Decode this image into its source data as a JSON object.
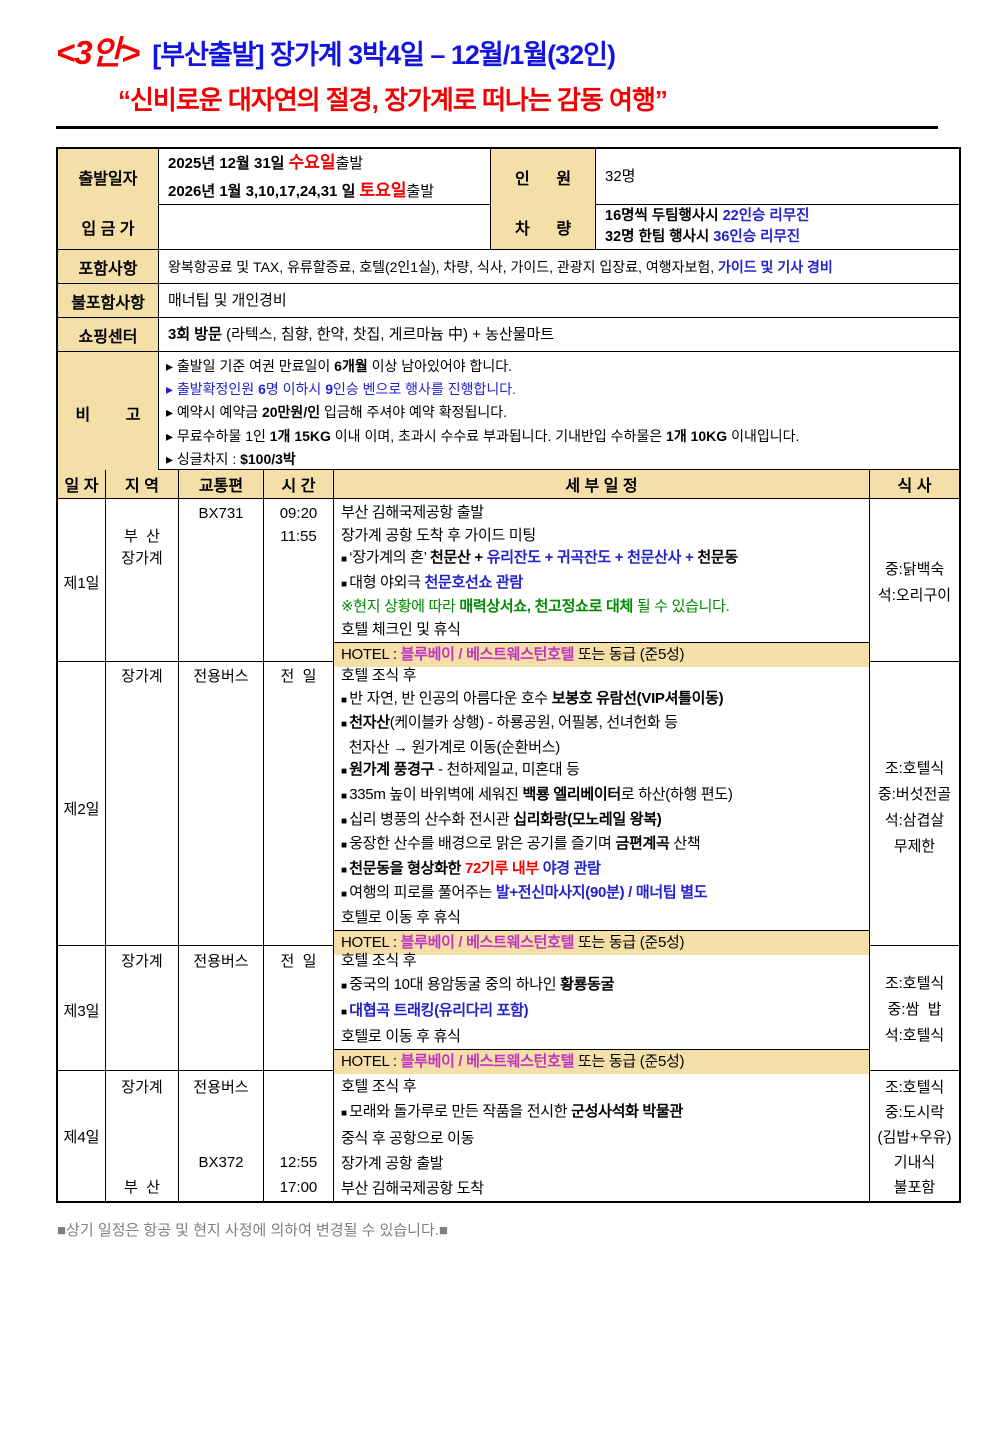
{
  "colors": {
    "table_header_bg": "#F4DFA9",
    "highlight_blue": "#2222CC",
    "highlight_red": "#F50000",
    "highlight_green": "#008A00",
    "hotel_magenta": "#C233C2",
    "title_blue": "#1414E0",
    "title_red": "#F50000",
    "footer_gray": "#808080"
  },
  "title": {
    "line1": [
      {
        "t": "<3안>",
        "c": "tred xl"
      },
      {
        "t": "  [부산출발] 장가계 3박4일 – 12월/1월(32인)",
        "c": "tblue"
      }
    ],
    "line2": [
      {
        "t": "“신비로운 대자연의 절경, 장가계로 떠나는 감동 여행”",
        "c": "tred"
      }
    ]
  },
  "info": {
    "departure": {
      "label": "출발일자",
      "lines": [
        [
          {
            "t": "2025년 12월 31일 ",
            "c": "b"
          },
          {
            "t": "수요일",
            "c": "red xb"
          },
          {
            "t": "출발",
            "c": ""
          }
        ],
        [
          {
            "t": "2026년 1월 3,10,17,24,31 일 ",
            "c": "b"
          },
          {
            "t": "토요일",
            "c": "red xb"
          },
          {
            "t": "출발",
            "c": ""
          }
        ]
      ]
    },
    "people": {
      "label": "인      원",
      "value": "32명"
    },
    "deposit": {
      "label": "입 금 가",
      "value": ""
    },
    "vehicle": {
      "label": "차      량",
      "lines": [
        [
          {
            "t": "16명씩 두팀행사시 ",
            "c": "b"
          },
          {
            "t": "22인승 리무진",
            "c": "blue b"
          }
        ],
        [
          {
            "t": "32명 한팀 행사시 ",
            "c": "b"
          },
          {
            "t": "36인승 리무진",
            "c": "blue b"
          }
        ]
      ]
    },
    "included": {
      "label": "포함사항",
      "segments": [
        {
          "t": "왕복항공료 및 TAX, 유류할증료, 호텔(2인1실), 차량, 식사, 가이드, 관광지 입장료, 여행자보험, ",
          "c": ""
        },
        {
          "t": "가이드 및 기사 경비",
          "c": "blue b"
        }
      ]
    },
    "excluded": {
      "label": "불포함사항",
      "segments": [
        {
          "t": "매너팁 및 개인경비",
          "c": ""
        }
      ]
    },
    "shopping": {
      "label": "쇼핑센터",
      "segments": [
        {
          "t": "3회 방문",
          "c": "b"
        },
        {
          "t": " (라텍스, 침향, 한약, 찻집, 게르마늄 中) + 농산물마트",
          "c": ""
        }
      ]
    },
    "notes": {
      "label": "비        고",
      "lines": [
        [
          {
            "t": "▸ 출발일 기준 여권 만료일이 ",
            "c": ""
          },
          {
            "t": "6개월",
            "c": "b"
          },
          {
            "t": " 이상 남아있어야 합니다.",
            "c": ""
          }
        ],
        [
          {
            "t": "▸ 출발확정인원 ",
            "c": "blue"
          },
          {
            "t": "6",
            "c": "blue b"
          },
          {
            "t": "명 이하시 ",
            "c": "blue"
          },
          {
            "t": "9",
            "c": "blue b"
          },
          {
            "t": "인승 벤으로 행사를 진행합니다.",
            "c": "blue"
          }
        ],
        [
          {
            "t": "▸ 예약시 예약금 ",
            "c": ""
          },
          {
            "t": "20만원/인",
            "c": "b"
          },
          {
            "t": " 입금해 주셔야 예약 확정됩니다.",
            "c": ""
          }
        ],
        [
          {
            "t": "▸ 무료수하물 1인 ",
            "c": ""
          },
          {
            "t": "1개 15KG",
            "c": "b"
          },
          {
            "t": " 이내 이며, 초과시 수수료 부과됩니다. 기내반입 수하물은 ",
            "c": ""
          },
          {
            "t": "1개 10KG",
            "c": "b"
          },
          {
            "t": " 이내입니다.",
            "c": ""
          }
        ],
        [
          {
            "t": "▸ 싱글차지 : ",
            "c": ""
          },
          {
            "t": "$100/3박",
            "c": "b"
          }
        ]
      ]
    }
  },
  "itinerary": {
    "headers": [
      "일 자",
      "지 역",
      "교통편",
      "시 간",
      "세 부 일 정",
      "식 사"
    ],
    "days": [
      {
        "day": "제1일",
        "regions": [
          "",
          "부  산",
          "장가계"
        ],
        "transports": [
          "BX731"
        ],
        "times": [
          "09:20",
          "11:55"
        ],
        "details": [
          {
            "s": [
              {
                "t": "부산 김해국제공항 출발",
                "c": ""
              }
            ]
          },
          {
            "s": [
              {
                "t": "장가계 공항 도착 후 가이드 미팅",
                "c": ""
              }
            ]
          },
          {
            "s": [
              {
                "t": "■ ",
                "c": "sq"
              },
              {
                "t": "‘장가계의 혼’ ",
                "c": ""
              },
              {
                "t": "천문산",
                "c": "b"
              },
              {
                "t": " + ",
                "c": "b"
              },
              {
                "t": "유리잔도",
                "c": "blue b"
              },
              {
                "t": " + ",
                "c": "blue b"
              },
              {
                "t": "귀곡잔도",
                "c": "blue b"
              },
              {
                "t": " + ",
                "c": "blue b"
              },
              {
                "t": "천문산사",
                "c": "blue b"
              },
              {
                "t": " + ",
                "c": "blue b"
              },
              {
                "t": "천문동",
                "c": "b"
              }
            ]
          },
          {
            "s": [
              {
                "t": "■ ",
                "c": "sq"
              },
              {
                "t": "대형 야외극 ",
                "c": ""
              },
              {
                "t": "천문호선쇼 관람",
                "c": "blue b"
              }
            ]
          },
          {
            "s": [
              {
                "t": "※현지 상황에 따라 ",
                "c": "green"
              },
              {
                "t": "매력상서쇼, 천고정쇼로 대체",
                "c": "green b"
              },
              {
                "t": " 될 수 있습니다.",
                "c": "green"
              }
            ]
          },
          {
            "s": [
              {
                "t": "호텔 체크인 및 휴식",
                "c": ""
              }
            ]
          },
          {
            "k": "hotel",
            "s": [
              {
                "t": "HOTEL : ",
                "c": ""
              },
              {
                "t": "블루베이 / 베스트웨스턴호텔",
                "c": "mag b"
              },
              {
                "t": " 또는 동급 (준5성)",
                "c": ""
              }
            ]
          }
        ],
        "meals": [
          "중:닭백숙",
          "석:오리구이"
        ]
      },
      {
        "day": "제2일",
        "regions": [
          "장가계"
        ],
        "transports": [
          "전용버스"
        ],
        "times": [
          "전  일"
        ],
        "details": [
          {
            "s": [
              {
                "t": "호텔 조식 후",
                "c": ""
              }
            ]
          },
          {
            "s": [
              {
                "t": "■ ",
                "c": "sq"
              },
              {
                "t": "반 자연, 반 인공의 아름다운 호수 ",
                "c": ""
              },
              {
                "t": "보봉호 유람선(VIP셔틀이동)",
                "c": "b"
              }
            ]
          },
          {
            "s": [
              {
                "t": "■ ",
                "c": "sq"
              },
              {
                "t": "천자산",
                "c": "b"
              },
              {
                "t": "(케이블카 상행) - 하룡공원, 어필봉, 선녀헌화 등",
                "c": ""
              }
            ]
          },
          {
            "s": [
              {
                "t": "  천자산 → 원가계로 이동(순환버스)",
                "c": ""
              }
            ]
          },
          {
            "s": [
              {
                "t": "■ ",
                "c": "sq"
              },
              {
                "t": "원가계 풍경구",
                "c": "b"
              },
              {
                "t": " - 천하제일교, 미혼대 등",
                "c": ""
              }
            ]
          },
          {
            "s": [
              {
                "t": "■ ",
                "c": "sq"
              },
              {
                "t": "335m 높이 바위벽에 세워진 ",
                "c": ""
              },
              {
                "t": "백룡 엘리베이터",
                "c": "b"
              },
              {
                "t": "로 하산(하행 편도)",
                "c": ""
              }
            ]
          },
          {
            "s": [
              {
                "t": "■ ",
                "c": "sq"
              },
              {
                "t": "십리 병풍의 산수화 전시관 ",
                "c": ""
              },
              {
                "t": "십리화랑(모노레일 왕복)",
                "c": "b"
              }
            ]
          },
          {
            "s": [
              {
                "t": "■ ",
                "c": "sq"
              },
              {
                "t": "웅장한 산수를 배경으로 맑은 공기를 즐기며 ",
                "c": ""
              },
              {
                "t": "금편계곡",
                "c": "b"
              },
              {
                "t": " 산책",
                "c": ""
              }
            ]
          },
          {
            "s": [
              {
                "t": "■ ",
                "c": "sq"
              },
              {
                "t": "천문동을 형상화한 ",
                "c": "b"
              },
              {
                "t": "72기루 내부",
                "c": "red b"
              },
              {
                "t": " ",
                "c": ""
              },
              {
                "t": "야경 관람",
                "c": "blue b"
              }
            ]
          },
          {
            "s": [
              {
                "t": "■ ",
                "c": "sq"
              },
              {
                "t": "여행의 피로를 풀어주는 ",
                "c": ""
              },
              {
                "t": "발+전신마사지(90분) / 매너팁 별도",
                "c": "blue b"
              }
            ]
          },
          {
            "s": [
              {
                "t": "호텔로 이동 후 휴식",
                "c": ""
              }
            ]
          },
          {
            "k": "hotel",
            "s": [
              {
                "t": "HOTEL : ",
                "c": ""
              },
              {
                "t": "블루베이 / 베스트웨스턴호텔",
                "c": "mag b"
              },
              {
                "t": " 또는 동급 (준5성)",
                "c": ""
              }
            ]
          }
        ],
        "meals": [
          "조:호텔식",
          "중:버섯전골",
          "석:삼겹살",
          "무제한"
        ]
      },
      {
        "day": "제3일",
        "regions": [
          "장가계"
        ],
        "transports": [
          "전용버스"
        ],
        "times": [
          "전  일"
        ],
        "details": [
          {
            "s": [
              {
                "t": "호텔 조식 후",
                "c": ""
              }
            ]
          },
          {
            "s": [
              {
                "t": "■ ",
                "c": "sq"
              },
              {
                "t": "중국의 10대 용암동굴 중의 하나인 ",
                "c": ""
              },
              {
                "t": "황룡동굴",
                "c": "b"
              }
            ]
          },
          {
            "s": [
              {
                "t": "■ ",
                "c": "sq"
              },
              {
                "t": "대협곡 트래킹(유리다리 포함)",
                "c": "blue b"
              }
            ]
          },
          {
            "s": [
              {
                "t": "호텔로 이동 후 휴식",
                "c": ""
              }
            ]
          },
          {
            "k": "hotel",
            "s": [
              {
                "t": "HOTEL : ",
                "c": ""
              },
              {
                "t": "블루베이 / 베스트웨스턴호텔",
                "c": "mag b"
              },
              {
                "t": " 또는 동급 (준5성)",
                "c": ""
              }
            ]
          }
        ],
        "meals": [
          "조:호텔식",
          "중:쌈  밥",
          "석:호텔식"
        ]
      },
      {
        "day": "제4일",
        "regions": [
          "장가계",
          "",
          "",
          "",
          "부  산"
        ],
        "transports": [
          "전용버스",
          "",
          "",
          "BX372",
          ""
        ],
        "times": [
          "",
          "",
          "",
          "12:55",
          "17:00"
        ],
        "details": [
          {
            "s": [
              {
                "t": "호텔 조식 후",
                "c": ""
              }
            ]
          },
          {
            "s": [
              {
                "t": "■ ",
                "c": "sq"
              },
              {
                "t": "모래와 돌가루로 만든 작품을 전시한 ",
                "c": ""
              },
              {
                "t": "군성사석화 박물관",
                "c": "b"
              }
            ]
          },
          {
            "s": [
              {
                "t": "중식 후 공항으로 이동",
                "c": ""
              }
            ]
          },
          {
            "s": [
              {
                "t": "장가계 공항 출발",
                "c": ""
              }
            ]
          },
          {
            "s": [
              {
                "t": "부산 김해국제공항 도착",
                "c": ""
              }
            ]
          }
        ],
        "meals": [
          "조:호텔식",
          "중:도시락",
          "(김밥+우유)",
          "기내식",
          "불포함"
        ]
      }
    ]
  },
  "footer": "■상기 일정은 항공 및 현지 사정에 의하여 변경될 수 있습니다.■"
}
